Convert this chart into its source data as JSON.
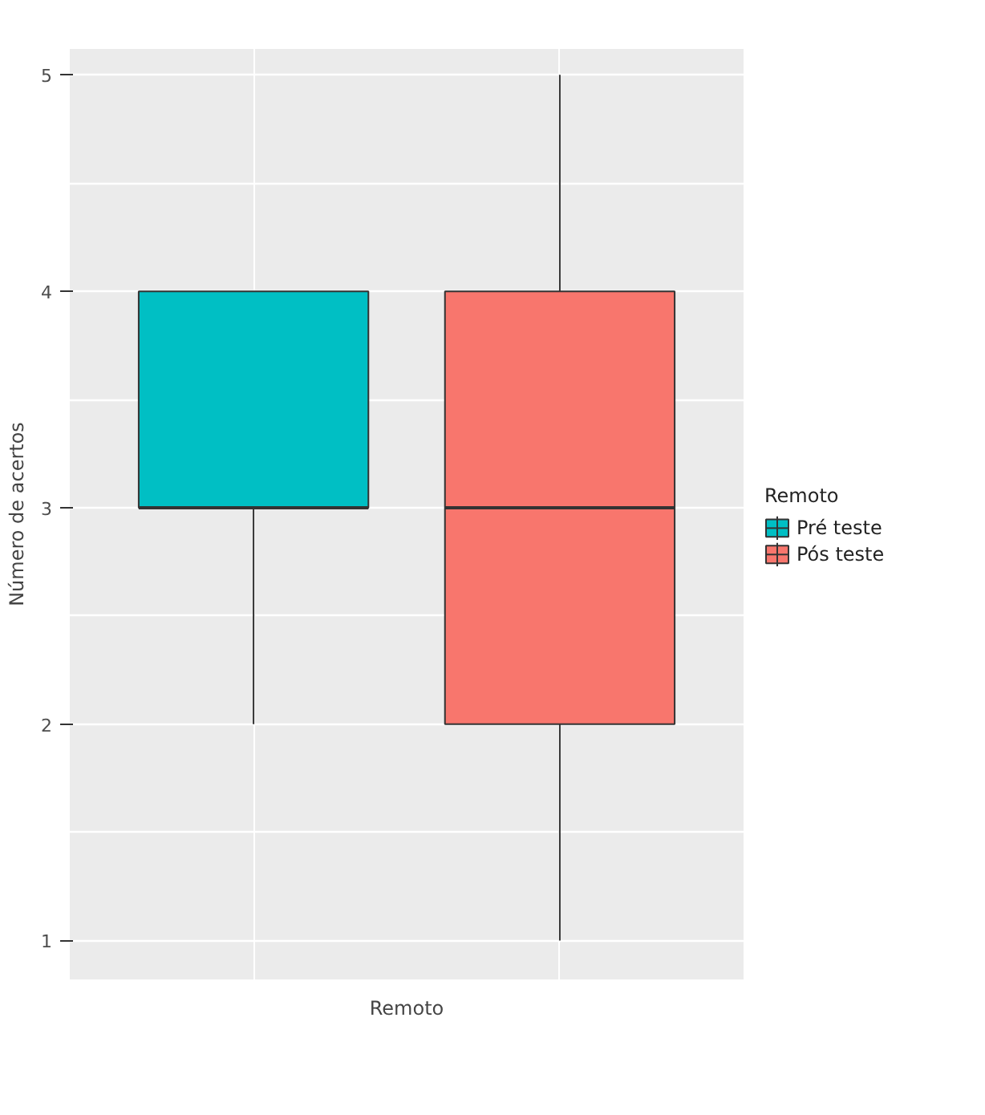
{
  "chart_data": {
    "type": "box",
    "xlabel": "Remoto",
    "ylabel": "Número de acertos",
    "legend_title": "Remoto",
    "categories": [
      null,
      null
    ],
    "series": [
      {
        "name": "Pré teste",
        "color": "#00bfc4",
        "boxes": [
          {
            "low": 2,
            "q1": 3,
            "median": 3,
            "q3": 4,
            "high": 4
          },
          null
        ]
      },
      {
        "name": "Pós teste",
        "color": "#f8766d",
        "boxes": [
          null,
          {
            "low": 1,
            "q1": 2,
            "median": 3,
            "q3": 4,
            "high": 5
          }
        ]
      }
    ],
    "ylim": [
      0.82,
      5.12
    ],
    "yticks": [
      1,
      2,
      3,
      4,
      5
    ],
    "grid": true,
    "legend": "right"
  }
}
